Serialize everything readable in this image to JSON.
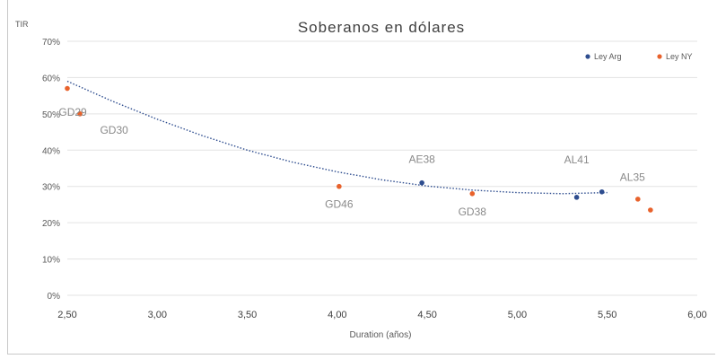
{
  "chart_data": {
    "type": "scatter",
    "title": "Soberanos en dólares",
    "ylabel": "TIR",
    "xlabel": "Duration (años)",
    "xlim": [
      2.5,
      6.0
    ],
    "ylim": [
      0,
      0.7
    ],
    "x_ticks": [
      "2,50",
      "3,00",
      "3,50",
      "4,00",
      "4,50",
      "5,00",
      "5,50",
      "6,00"
    ],
    "x_tick_values": [
      2.5,
      3.0,
      3.5,
      4.0,
      4.5,
      5.0,
      5.5,
      6.0
    ],
    "y_ticks": [
      "0%",
      "10%",
      "20%",
      "30%",
      "40%",
      "50%",
      "60%",
      "70%"
    ],
    "y_tick_values": [
      0,
      0.1,
      0.2,
      0.3,
      0.4,
      0.5,
      0.6,
      0.7
    ],
    "grid": true,
    "legend_position": "top-right",
    "series": [
      {
        "name": "Ley Arg",
        "color": "#2e4d8f",
        "points": [
          {
            "x": 4.47,
            "y": 0.31,
            "label": "AE38"
          },
          {
            "x": 5.33,
            "y": 0.27,
            "label": "AL41"
          },
          {
            "x": 5.47,
            "y": 0.285,
            "label": ""
          }
        ]
      },
      {
        "name": "Ley NY",
        "color": "#e8622c",
        "points": [
          {
            "x": 2.5,
            "y": 0.57,
            "label": ""
          },
          {
            "x": 2.57,
            "y": 0.5,
            "label": "GD29"
          },
          {
            "x": 4.01,
            "y": 0.3,
            "label": "GD46"
          },
          {
            "x": 4.75,
            "y": 0.28,
            "label": "GD38"
          },
          {
            "x": 5.67,
            "y": 0.265,
            "label": ""
          },
          {
            "x": 5.74,
            "y": 0.235,
            "label": ""
          }
        ]
      }
    ],
    "free_labels": [
      {
        "text": "GD30",
        "x": 2.76,
        "y": 0.445
      },
      {
        "text": "AL35",
        "x": 5.64,
        "y": 0.315
      }
    ],
    "trendline": {
      "style": "dotted",
      "color": "#2e4d8f",
      "x": [
        2.5,
        2.75,
        3.0,
        3.25,
        3.5,
        3.75,
        4.0,
        4.25,
        4.5,
        4.75,
        5.0,
        5.25,
        5.5
      ],
      "y": [
        0.59,
        0.535,
        0.485,
        0.44,
        0.4,
        0.367,
        0.34,
        0.318,
        0.301,
        0.29,
        0.283,
        0.28,
        0.283
      ]
    }
  }
}
